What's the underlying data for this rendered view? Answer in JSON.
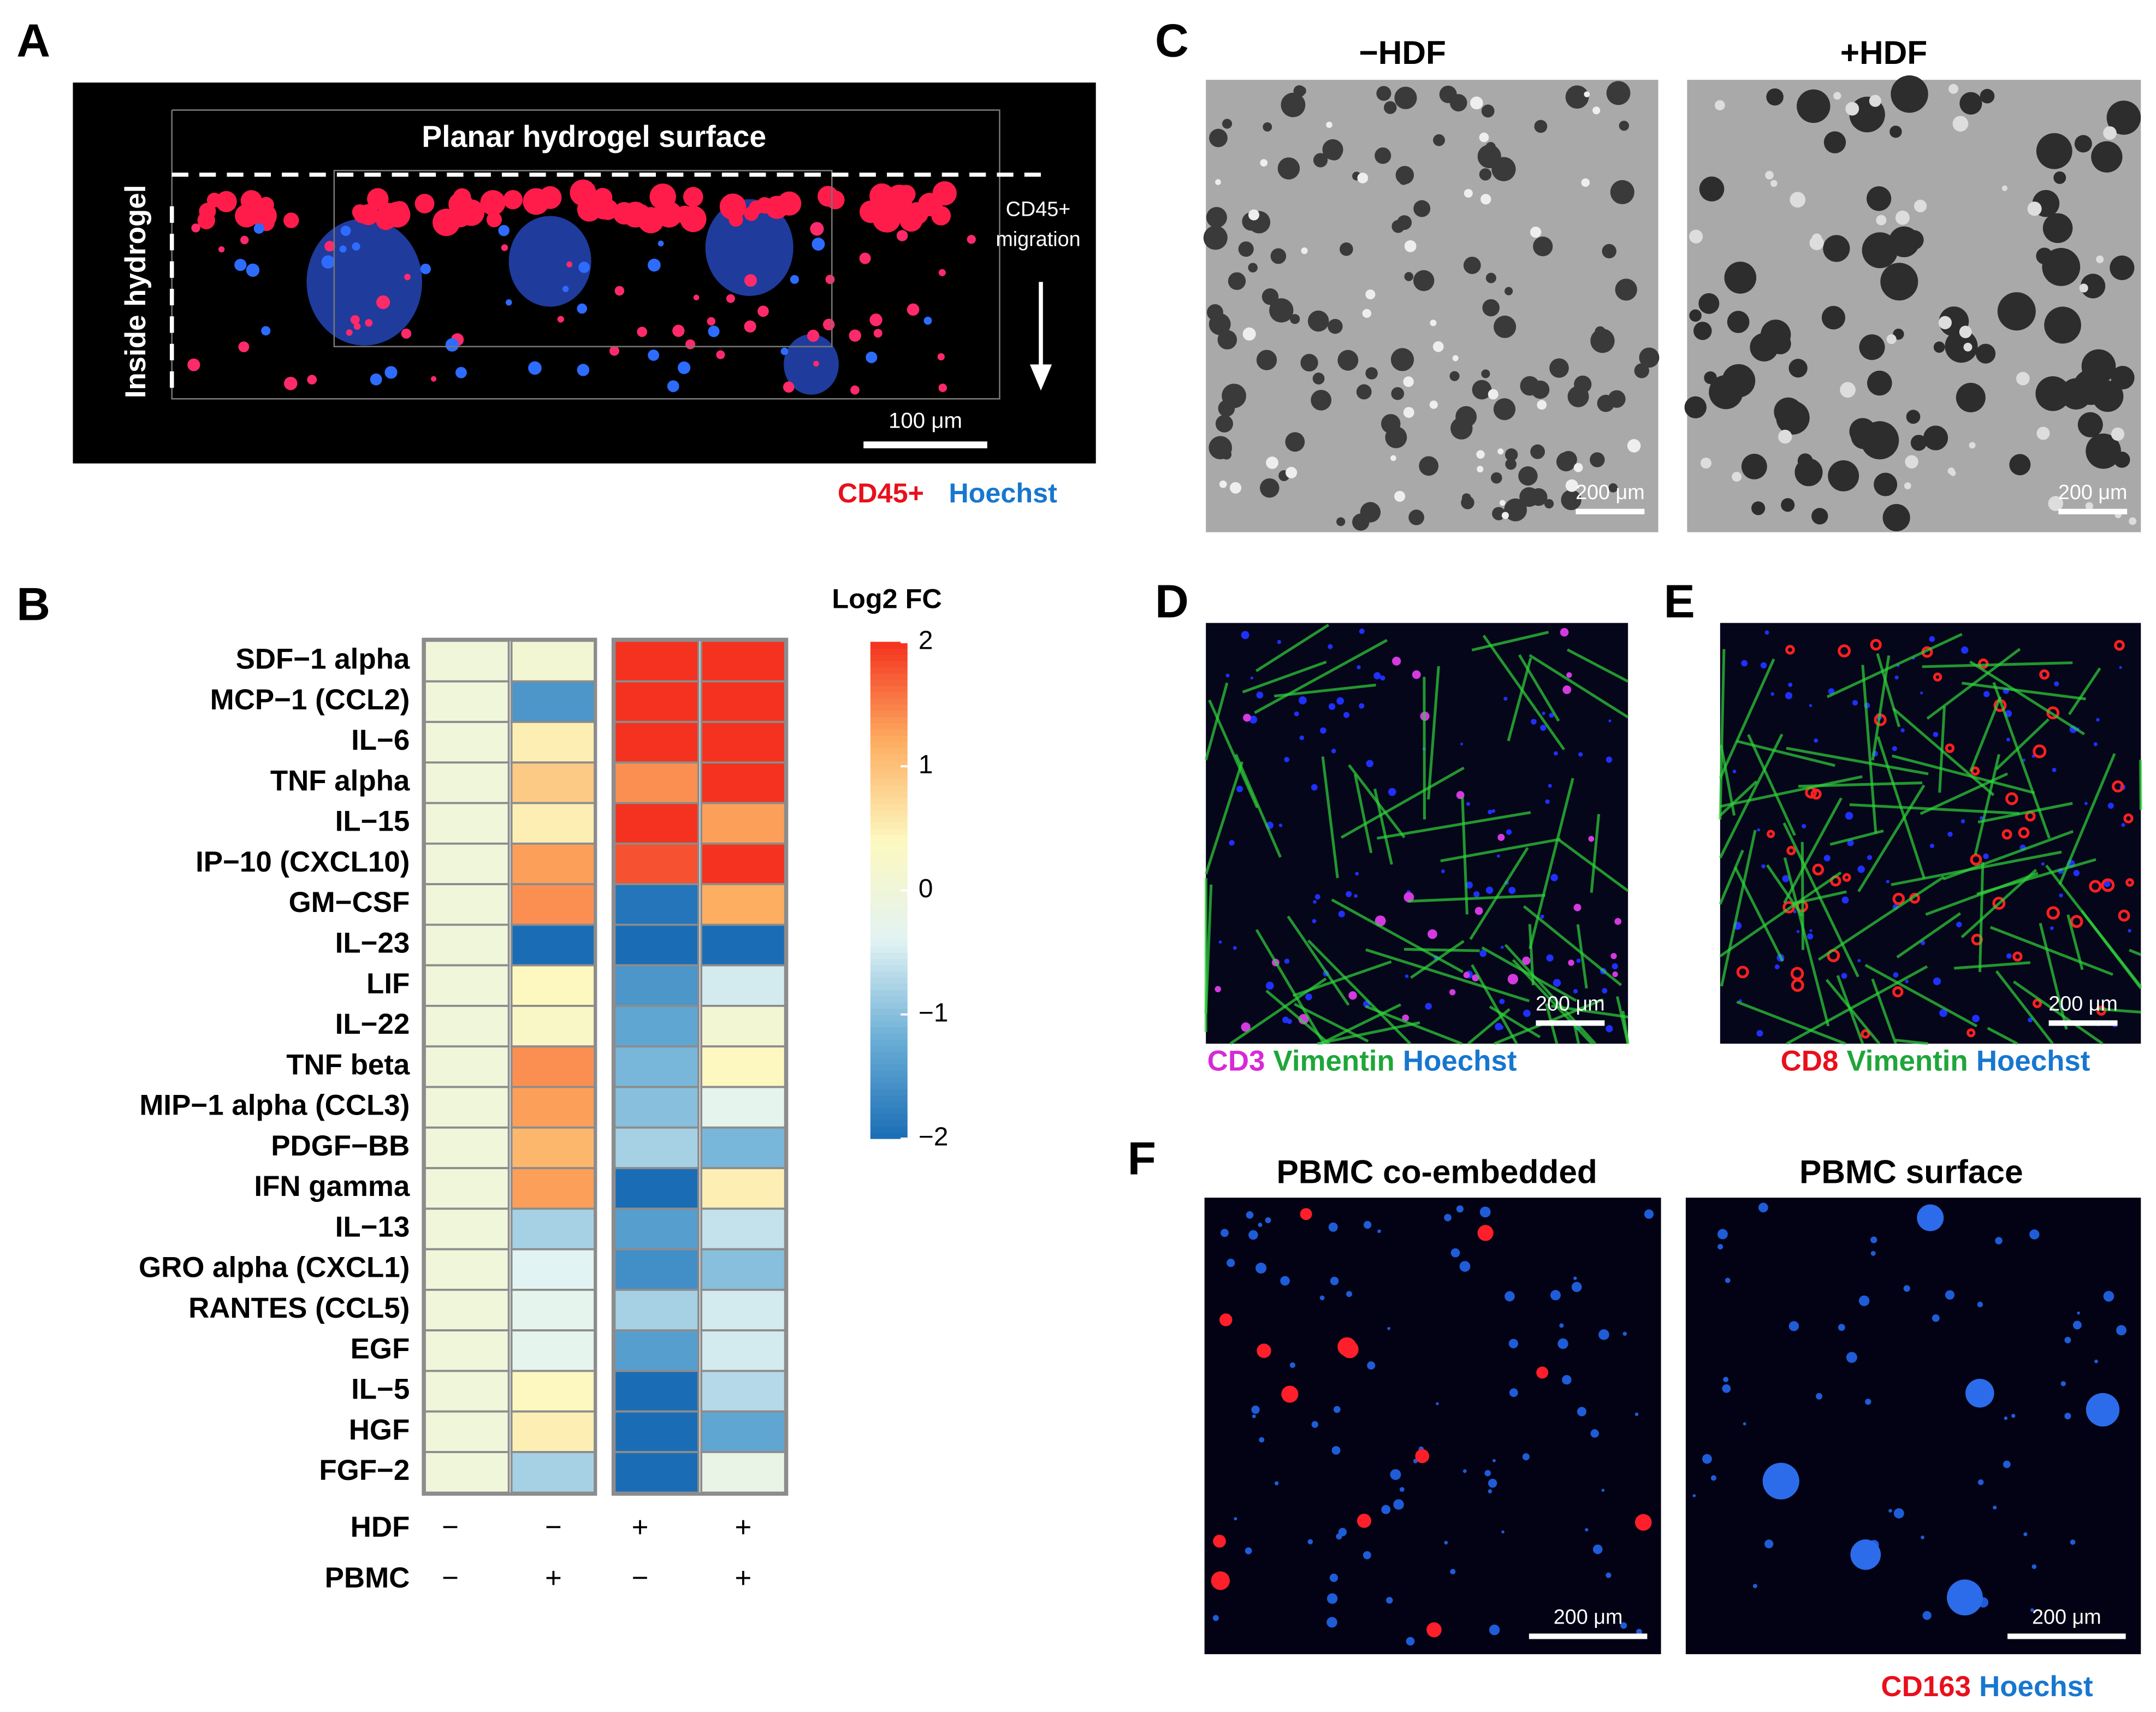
{
  "panels": {
    "A": {
      "label": "A",
      "surface_label": "Planar hydrogel surface",
      "side_label": "Inside hydrogel",
      "arrow_label": [
        "CD45+",
        "migration"
      ],
      "scale_bar": "100 μm",
      "legend": [
        "CD45+",
        "Hoechst"
      ]
    },
    "B": {
      "label": "B"
    },
    "C": {
      "label": "C",
      "titles": [
        "−HDF",
        "+HDF"
      ],
      "scale_bars": [
        "200 μm",
        "200 μm"
      ]
    },
    "D": {
      "label": "D",
      "scale_bar": "200 μm",
      "legend": [
        "CD3",
        "Vimentin",
        "Hoechst"
      ]
    },
    "E": {
      "label": "E",
      "scale_bar": "200 μm",
      "legend": [
        "CD8",
        "Vimentin",
        "Hoechst"
      ]
    },
    "F": {
      "label": "F",
      "titles": [
        "PBMC co-embedded",
        "PBMC surface"
      ],
      "scale_bars": [
        "200 μm",
        "200 μm"
      ],
      "legend": [
        "CD163",
        "Hoechst"
      ]
    }
  },
  "chart_data": {
    "type": "heatmap",
    "title": "Log2 FC",
    "rows": [
      "SDF−1 alpha",
      "MCP−1 (CCL2)",
      "IL−6",
      "TNF alpha",
      "IL−15",
      "IP−10 (CXCL10)",
      "GM−CSF",
      "IL−23",
      "LIF",
      "IL−22",
      "TNF beta",
      "MIP−1 alpha (CCL3)",
      "PDGF−BB",
      "IFN gamma",
      "IL−13",
      "GRO alpha (CXCL1)",
      "RANTES (CCL5)",
      "EGF",
      "IL−5",
      "HGF",
      "FGF−2"
    ],
    "column_annotations": [
      {
        "name": "HDF",
        "values": [
          "−",
          "−",
          "+",
          "+"
        ]
      },
      {
        "name": "PBMC",
        "values": [
          "−",
          "+",
          "−",
          "+"
        ]
      }
    ],
    "values": [
      [
        0,
        0.1,
        2,
        2
      ],
      [
        0,
        -1.5,
        2,
        2
      ],
      [
        0,
        0.5,
        2,
        2
      ],
      [
        0,
        0.9,
        1.4,
        2
      ],
      [
        0,
        0.5,
        2,
        1.3
      ],
      [
        0,
        1.3,
        1.8,
        2
      ],
      [
        0,
        1.4,
        -1.9,
        1.2
      ],
      [
        0,
        -2,
        -2,
        -2
      ],
      [
        0,
        0.4,
        -1.5,
        -0.5
      ],
      [
        0,
        0.3,
        -1.3,
        0.1
      ],
      [
        0,
        1.4,
        -1.1,
        0.4
      ],
      [
        0,
        1.3,
        -1.0,
        -0.3
      ],
      [
        0,
        1.1,
        -0.8,
        -1.1
      ],
      [
        0,
        1.3,
        -2,
        0.5
      ],
      [
        0,
        -0.8,
        -1.4,
        -0.6
      ],
      [
        0,
        -0.4,
        -1.6,
        -1.0
      ],
      [
        0,
        -0.3,
        -0.8,
        -0.5
      ],
      [
        0,
        -0.3,
        -1.4,
        -0.5
      ],
      [
        0,
        0.4,
        -2,
        -0.7
      ],
      [
        0,
        0.5,
        -2,
        -1.3
      ],
      [
        0,
        -0.8,
        -2,
        -0.2
      ]
    ],
    "zlim": [
      -2,
      2
    ],
    "zticks": [
      {
        "value": -2,
        "label": "−2"
      },
      {
        "value": -1,
        "label": "−1"
      },
      0,
      1,
      2
    ],
    "colors": [
      "#1a6db5",
      "#6aaed6",
      "#e2f3f3",
      "#fdf8c0",
      "#fdae61",
      "#f4321f"
    ]
  }
}
